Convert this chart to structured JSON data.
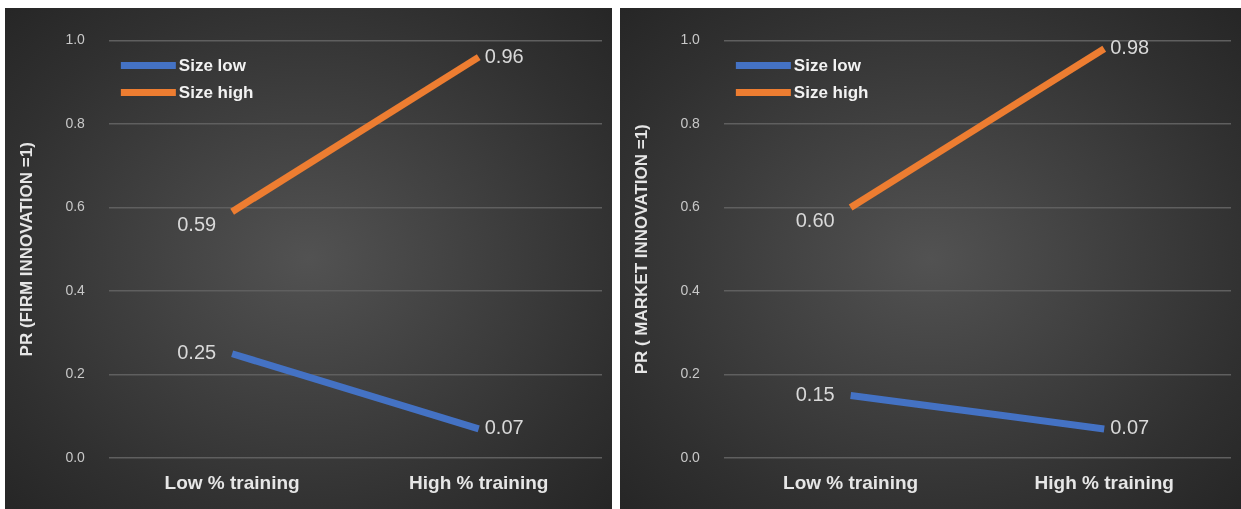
{
  "chart_data": [
    {
      "type": "line",
      "categories": [
        "Low % training",
        "High % training"
      ],
      "ylabel": "PR (FIRM INNOVATION =1)",
      "ylim": [
        0,
        1
      ],
      "yticks": [
        {
          "value": 0,
          "label": "0.0"
        },
        {
          "value": 0.2,
          "label": "0.2"
        },
        {
          "value": 0.4,
          "label": "0.4"
        },
        {
          "value": 0.6,
          "label": "0.6"
        },
        {
          "value": 0.8,
          "label": "0.8"
        },
        {
          "value": 1,
          "label": "1.0"
        }
      ],
      "grid": "y",
      "legend": "top left",
      "marker": "none",
      "line_style": "solid",
      "series": [
        {
          "name": "Size low",
          "color": "#4472c4",
          "values": [
            0.25,
            0.07
          ],
          "value_labels": [
            "0.25",
            "0.07"
          ]
        },
        {
          "name": "Size high",
          "color": "#ed7d31",
          "values": [
            0.59,
            0.96
          ],
          "value_labels": [
            "0.59",
            "0.96"
          ]
        }
      ]
    },
    {
      "type": "line",
      "categories": [
        "Low % training",
        "High % training"
      ],
      "ylabel": "PR ( MARKET INNOVATION =1)",
      "ylim": [
        0,
        1
      ],
      "yticks": [
        {
          "value": 0,
          "label": "0.0"
        },
        {
          "value": 0.2,
          "label": "0.2"
        },
        {
          "value": 0.4,
          "label": "0.4"
        },
        {
          "value": 0.6,
          "label": "0.6"
        },
        {
          "value": 0.8,
          "label": "0.8"
        },
        {
          "value": 1,
          "label": "1.0"
        }
      ],
      "grid": "y",
      "legend": "top left",
      "marker": "none",
      "line_style": "solid",
      "series": [
        {
          "name": "Size low",
          "color": "#4472c4",
          "values": [
            0.15,
            0.07
          ],
          "value_labels": [
            "0.15",
            "0.07"
          ]
        },
        {
          "name": "Size high",
          "color": "#ed7d31",
          "values": [
            0.6,
            0.98
          ],
          "value_labels": [
            "0.60",
            "0.98"
          ]
        }
      ]
    }
  ]
}
